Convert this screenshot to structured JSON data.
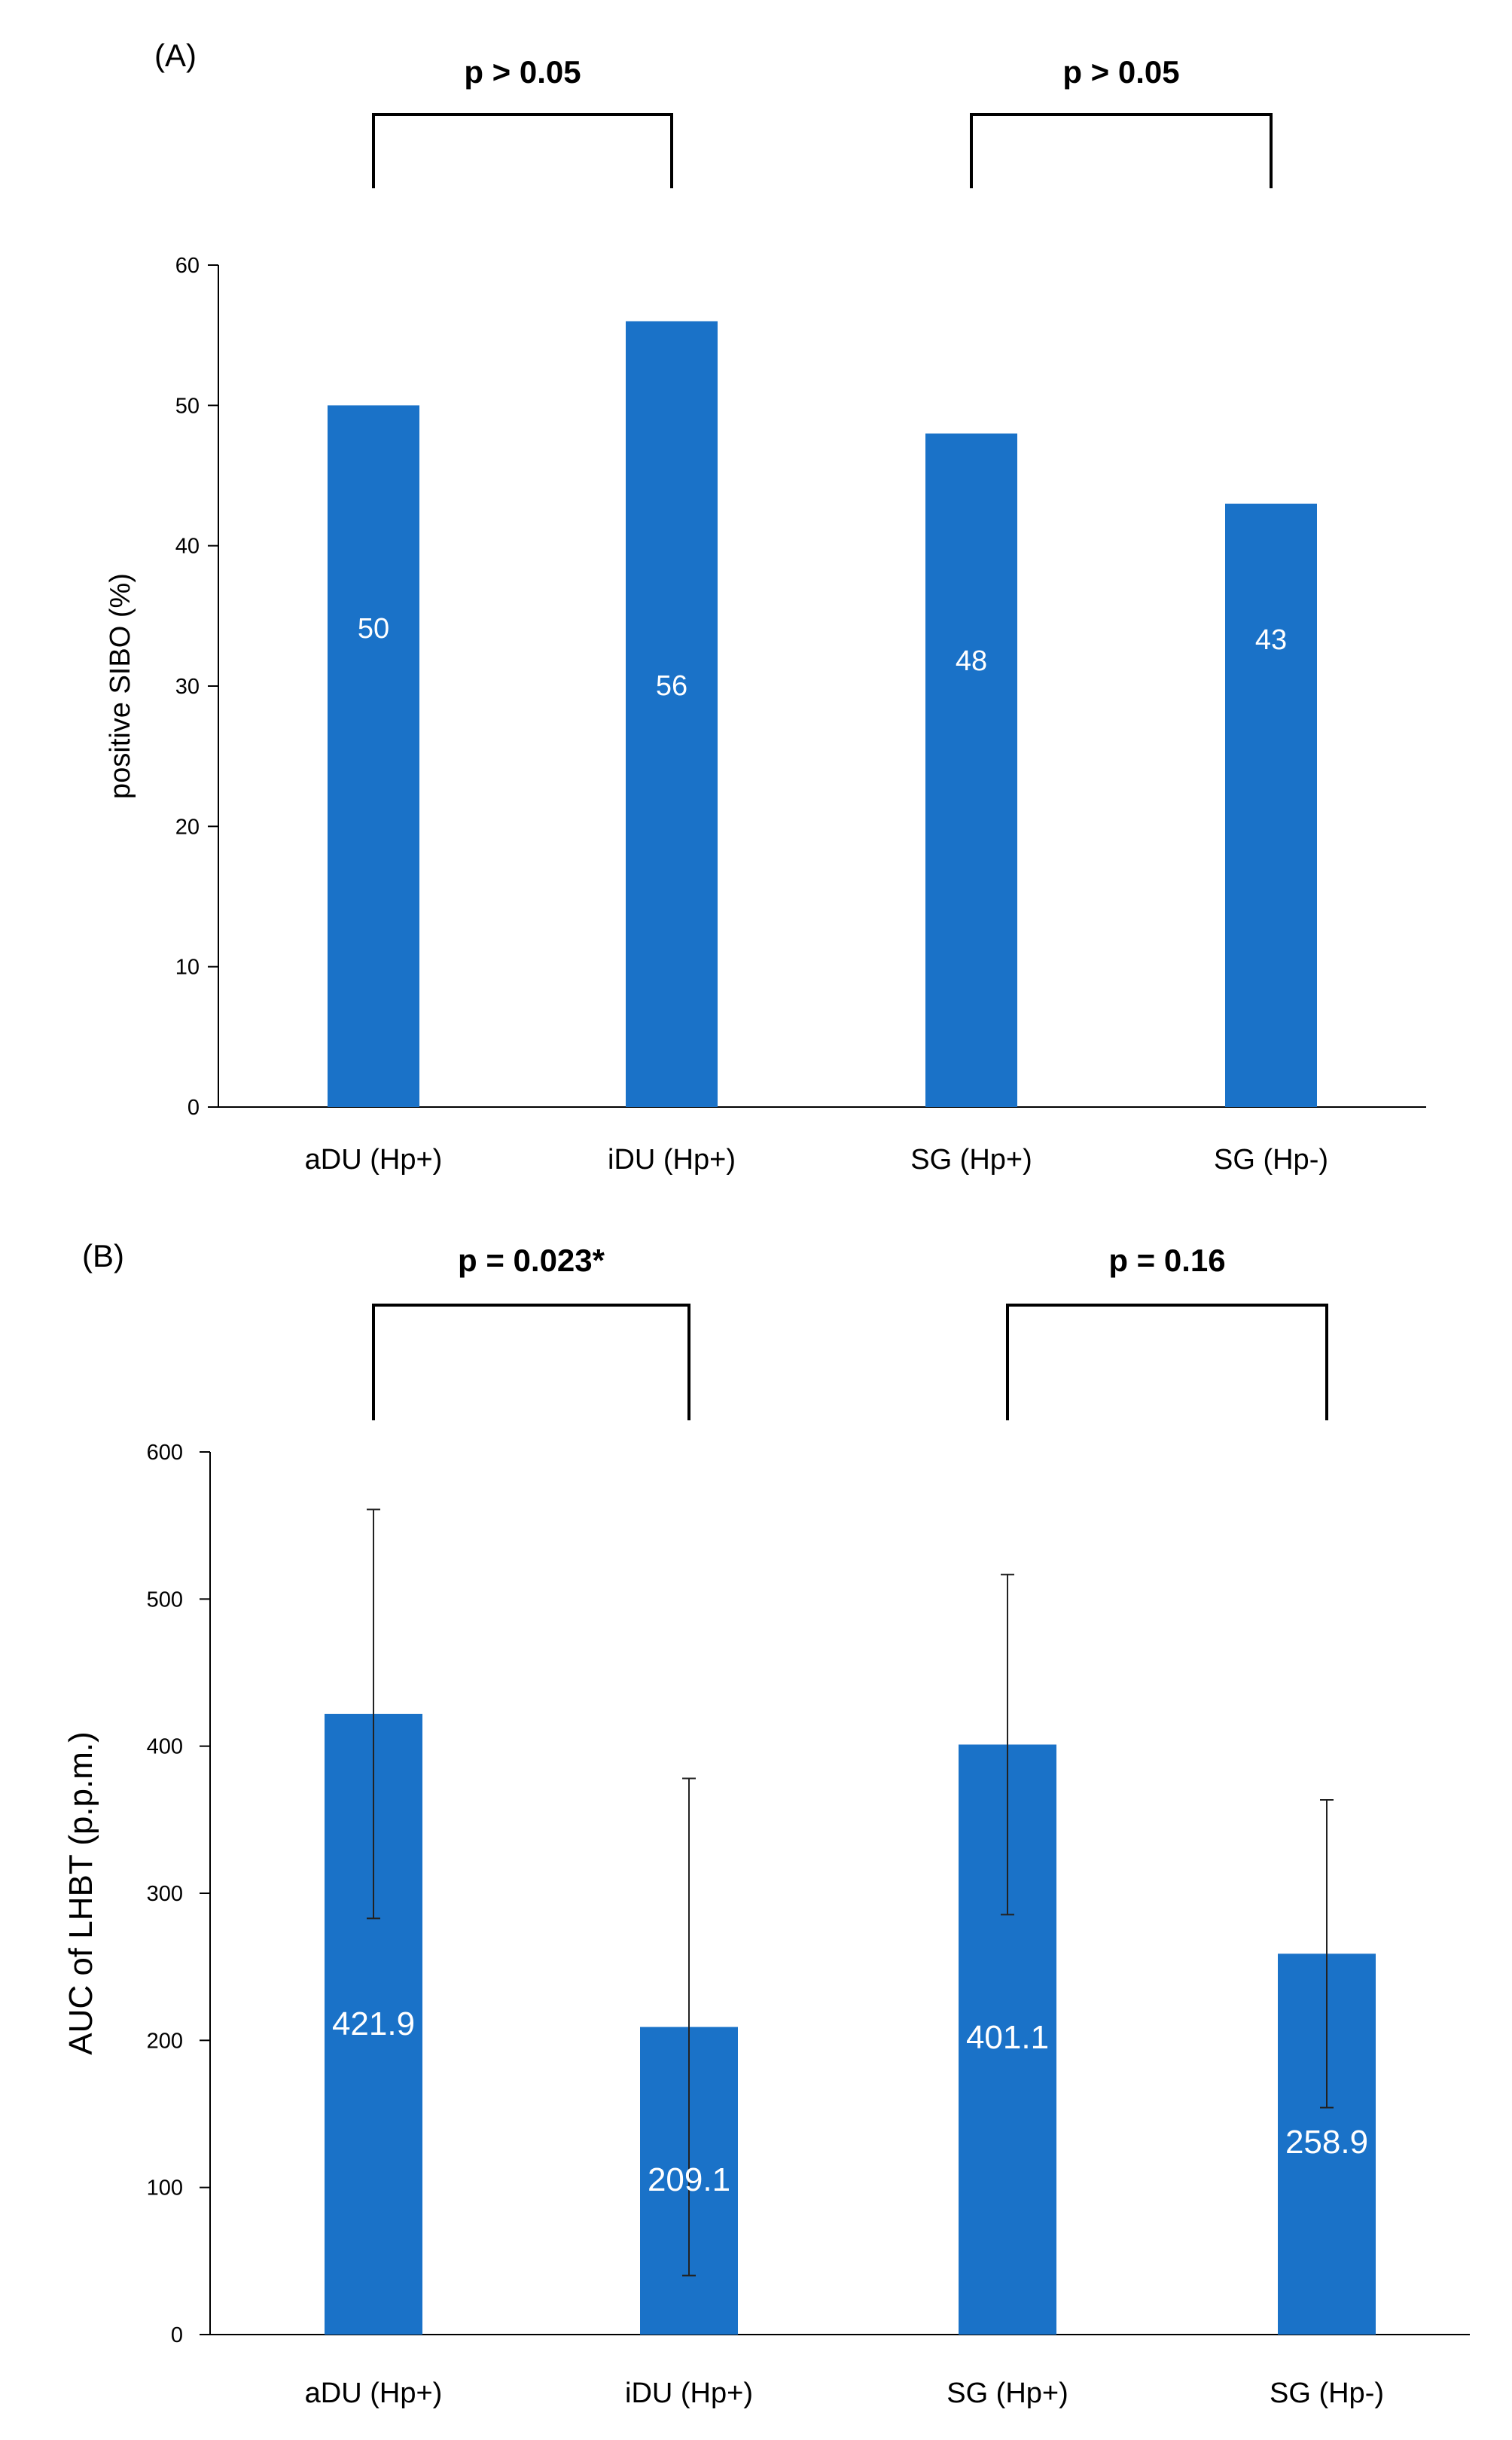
{
  "chart_data": [
    {
      "panel": "(A)",
      "type": "bar",
      "categories": [
        "aDU (Hp+)",
        "iDU (Hp+)",
        "SG (Hp+)",
        "SG (Hp-)"
      ],
      "values": [
        50,
        56,
        48,
        43
      ],
      "data_labels": [
        "50",
        "56",
        "48",
        "43"
      ],
      "ylabel": "positive SIBO (%)",
      "ylim": [
        0,
        60
      ],
      "yticks": [
        0,
        10,
        20,
        30,
        40,
        50,
        60
      ],
      "color": "#1a72c8",
      "grid": false,
      "significance": [
        {
          "from": 0,
          "to": 1,
          "text": "p > 0.05"
        },
        {
          "from": 2,
          "to": 3,
          "text": "p > 0.05"
        }
      ]
    },
    {
      "panel": "(B)",
      "type": "bar",
      "categories": [
        "aDU (Hp+)",
        "iDU (Hp+)",
        "SG (Hp+)",
        "SG (Hp-)"
      ],
      "values": [
        421.9,
        209.1,
        401.1,
        258.9
      ],
      "data_labels": [
        "421.9",
        "209.1",
        "401.1",
        "258.9"
      ],
      "error": [
        139.0,
        169.0,
        115.6,
        104.6
      ],
      "ylabel": "AUC of LHBT (p.p.m.)",
      "ylim": [
        0,
        600
      ],
      "yticks": [
        0,
        100,
        200,
        300,
        400,
        500,
        600
      ],
      "color": "#1a72c8",
      "grid": false,
      "significance": [
        {
          "from": 0,
          "to": 1,
          "text": "p = 0.023*"
        },
        {
          "from": 2,
          "to": 3,
          "text": "p = 0.16"
        }
      ]
    }
  ]
}
